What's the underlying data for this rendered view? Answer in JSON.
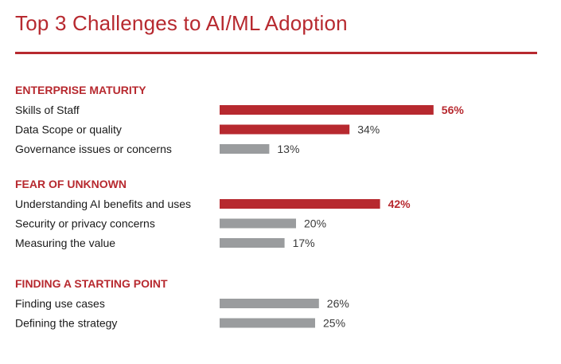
{
  "colors": {
    "accent": "#b7292f",
    "neutral": "#9a9c9e",
    "text": "#1a1a1a",
    "value_text": "#3a3a3a"
  },
  "chart_data": {
    "type": "bar",
    "orientation": "horizontal",
    "title": "Top 3 Challenges to AI/ML Adoption",
    "unit": "%",
    "xlim": [
      0,
      100
    ],
    "grid": false,
    "groups": [
      {
        "name": "ENTERPRISE MATURITY",
        "items": [
          {
            "label": "Skills of Staff",
            "value": 56,
            "value_label": "56%",
            "highlight": true
          },
          {
            "label": "Data Scope or quality",
            "value": 34,
            "value_label": "34%",
            "highlight": true
          },
          {
            "label": "Governance issues or concerns",
            "value": 13,
            "value_label": "13%",
            "highlight": false
          }
        ]
      },
      {
        "name": "FEAR OF UNKNOWN",
        "items": [
          {
            "label": "Understanding AI benefits and uses",
            "value": 42,
            "value_label": "42%",
            "highlight": true
          },
          {
            "label": "Security or privacy concerns",
            "value": 20,
            "value_label": "20%",
            "highlight": false
          },
          {
            "label": "Measuring the value",
            "value": 17,
            "value_label": "17%",
            "highlight": false
          }
        ]
      },
      {
        "name": "FINDING A STARTING POINT",
        "items": [
          {
            "label": "Finding use cases",
            "value": 26,
            "value_label": "26%",
            "highlight": false
          },
          {
            "label": "Defining the strategy",
            "value": 25,
            "value_label": "25%",
            "highlight": false
          }
        ]
      }
    ]
  }
}
